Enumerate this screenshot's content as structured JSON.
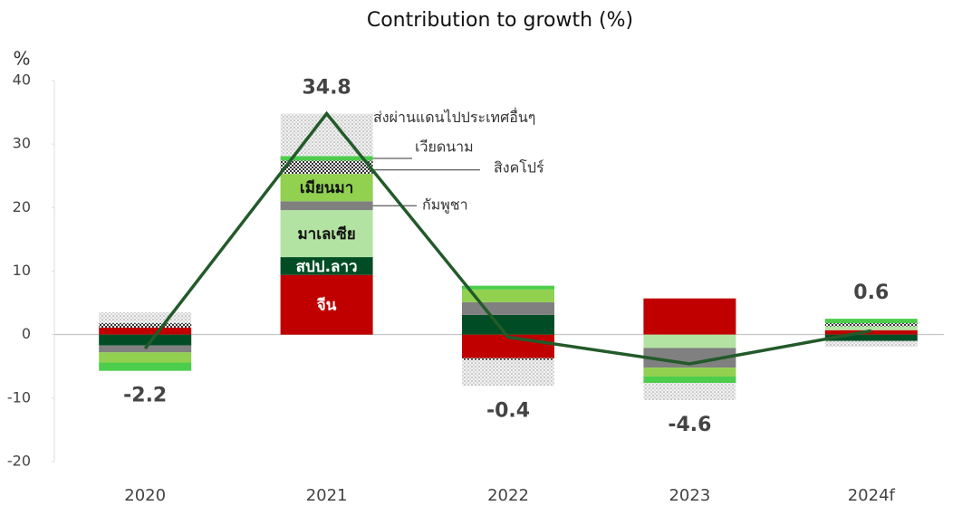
{
  "chart_data": {
    "type": "stacked-bar-line",
    "title": "Contribution to growth (%)",
    "y_label": "%",
    "categories": [
      "2020",
      "2021",
      "2022",
      "2023",
      "2024f"
    ],
    "ylim": [
      -20,
      40
    ],
    "yticks": [
      -20,
      -10,
      0,
      10,
      20,
      30,
      40
    ],
    "series": [
      {
        "name": "จีน",
        "color": "#c00000",
        "values": [
          1.1,
          9.4,
          -3.7,
          5.7,
          0.7
        ]
      },
      {
        "name": "สปป.ลาว",
        "color": "#004d25",
        "values": [
          -1.7,
          2.8,
          3.1,
          0,
          -1.0
        ]
      },
      {
        "name": "มาเลเซีย",
        "color": "#b3e3a3",
        "values": [
          0,
          7.4,
          0,
          -2.1,
          0.6
        ]
      },
      {
        "name": "กัมพูชา",
        "color": "#808080",
        "values": [
          -1.1,
          1.4,
          2.0,
          -3.1,
          0
        ]
      },
      {
        "name": "เมียนมา",
        "color": "#92d050",
        "values": [
          -1.6,
          4.3,
          2.0,
          -1.4,
          0
        ]
      },
      {
        "name": "สิงคโปร์",
        "color": "#222222",
        "pattern": "dots",
        "values": [
          0.7,
          2.1,
          -0.3,
          0,
          0.5
        ]
      },
      {
        "name": "เวียดนาม",
        "color": "#4ccd4c",
        "values": [
          -1.3,
          0.7,
          0.6,
          -1.0,
          0.7
        ]
      },
      {
        "name": "ส่งผ่านแดนไปประเทศอื่นๆ",
        "color": "#b0b0b0",
        "pattern": "dots",
        "values": [
          1.7,
          6.7,
          -4.1,
          -2.7,
          -0.9
        ]
      }
    ],
    "line": {
      "color": "#235a2a",
      "values": [
        -2.2,
        34.8,
        -0.4,
        -4.6,
        0.6
      ]
    }
  }
}
